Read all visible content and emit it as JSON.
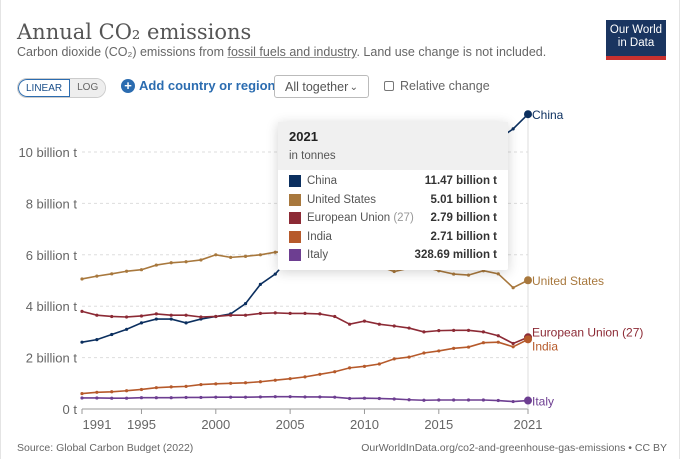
{
  "header": {
    "title": "Annual CO₂ emissions",
    "subtitle_pre": "Carbon dioxide (CO₂) emissions from ",
    "subtitle_link": "fossil fuels and industry",
    "subtitle_post": ". Land use change is not included.",
    "logo": "Our World in Data"
  },
  "controls": {
    "linear": "LINEAR",
    "log": "LOG",
    "add": "Add country or region",
    "add_icon": "plus-circle-icon",
    "select": "All together",
    "relative": "Relative change"
  },
  "tooltip": {
    "year": "2021",
    "unit": "in tonnes",
    "rows": [
      {
        "name": "China",
        "suffix": "",
        "value": "11.47 billion t"
      },
      {
        "name": "United States",
        "suffix": "",
        "value": "5.01 billion t"
      },
      {
        "name": "European Union",
        "suffix": "(27)",
        "value": "2.79 billion t"
      },
      {
        "name": "India",
        "suffix": "",
        "value": "2.71 billion t"
      },
      {
        "name": "Italy",
        "suffix": "",
        "value": "328.69 million t"
      }
    ]
  },
  "footer": {
    "source": "Source: Global Carbon Budget (2022)",
    "url": "OurWorldInData.org/co2-and-greenhouse-gas-emissions • CC BY"
  },
  "chart_data": {
    "type": "line",
    "title": "Annual CO₂ emissions",
    "ylabel": "tonnes",
    "ylim": [
      0,
      11.5
    ],
    "xlim": [
      1991,
      2021
    ],
    "yticks": [
      {
        "v": 0,
        "label": "0 t"
      },
      {
        "v": 2,
        "label": "2 billion t"
      },
      {
        "v": 4,
        "label": "4 billion t"
      },
      {
        "v": 6,
        "label": "6 billion t"
      },
      {
        "v": 8,
        "label": "8 billion t"
      },
      {
        "v": 10,
        "label": "10 billion t"
      }
    ],
    "xticks": [
      1991,
      1995,
      2000,
      2005,
      2010,
      2015,
      2021
    ],
    "grid": true,
    "x_start": 1991,
    "series": [
      {
        "name": "China",
        "label": "China",
        "color": "#0b2f5f",
        "values": [
          2.6,
          2.7,
          2.9,
          3.1,
          3.35,
          3.5,
          3.5,
          3.35,
          3.5,
          3.6,
          3.7,
          4.1,
          4.85,
          5.25,
          5.9,
          6.5,
          7.0,
          7.4,
          7.9,
          8.6,
          9.4,
          9.6,
          9.8,
          9.8,
          9.7,
          9.7,
          9.9,
          10.3,
          10.5,
          10.9,
          11.47
        ]
      },
      {
        "name": "United States",
        "label": "United States",
        "color": "#a8783d",
        "values": [
          5.06,
          5.17,
          5.26,
          5.36,
          5.42,
          5.6,
          5.69,
          5.73,
          5.8,
          6.0,
          5.9,
          5.94,
          6.0,
          6.1,
          6.13,
          6.05,
          6.13,
          5.9,
          5.48,
          5.68,
          5.55,
          5.35,
          5.48,
          5.53,
          5.38,
          5.25,
          5.21,
          5.38,
          5.26,
          4.72,
          5.01
        ]
      },
      {
        "name": "European Union (27)",
        "label": "European Union (27)",
        "color": "#8c2a35",
        "values": [
          3.8,
          3.65,
          3.6,
          3.58,
          3.62,
          3.7,
          3.65,
          3.65,
          3.58,
          3.6,
          3.65,
          3.65,
          3.72,
          3.74,
          3.72,
          3.72,
          3.7,
          3.6,
          3.3,
          3.42,
          3.3,
          3.23,
          3.15,
          3.0,
          3.05,
          3.06,
          3.06,
          3.0,
          2.85,
          2.55,
          2.79
        ]
      },
      {
        "name": "India",
        "label": "India",
        "color": "#b65a2b",
        "values": [
          0.6,
          0.65,
          0.67,
          0.71,
          0.76,
          0.83,
          0.86,
          0.88,
          0.95,
          0.98,
          1.0,
          1.02,
          1.06,
          1.12,
          1.18,
          1.25,
          1.35,
          1.45,
          1.6,
          1.66,
          1.75,
          1.95,
          2.02,
          2.18,
          2.26,
          2.36,
          2.41,
          2.58,
          2.6,
          2.42,
          2.71
        ]
      },
      {
        "name": "Italy",
        "label": "Italy",
        "color": "#6d3e91",
        "values": [
          0.43,
          0.43,
          0.42,
          0.42,
          0.44,
          0.44,
          0.44,
          0.45,
          0.45,
          0.46,
          0.46,
          0.46,
          0.47,
          0.48,
          0.48,
          0.47,
          0.47,
          0.46,
          0.41,
          0.42,
          0.41,
          0.39,
          0.36,
          0.34,
          0.35,
          0.35,
          0.35,
          0.35,
          0.33,
          0.29,
          0.33
        ]
      }
    ]
  }
}
